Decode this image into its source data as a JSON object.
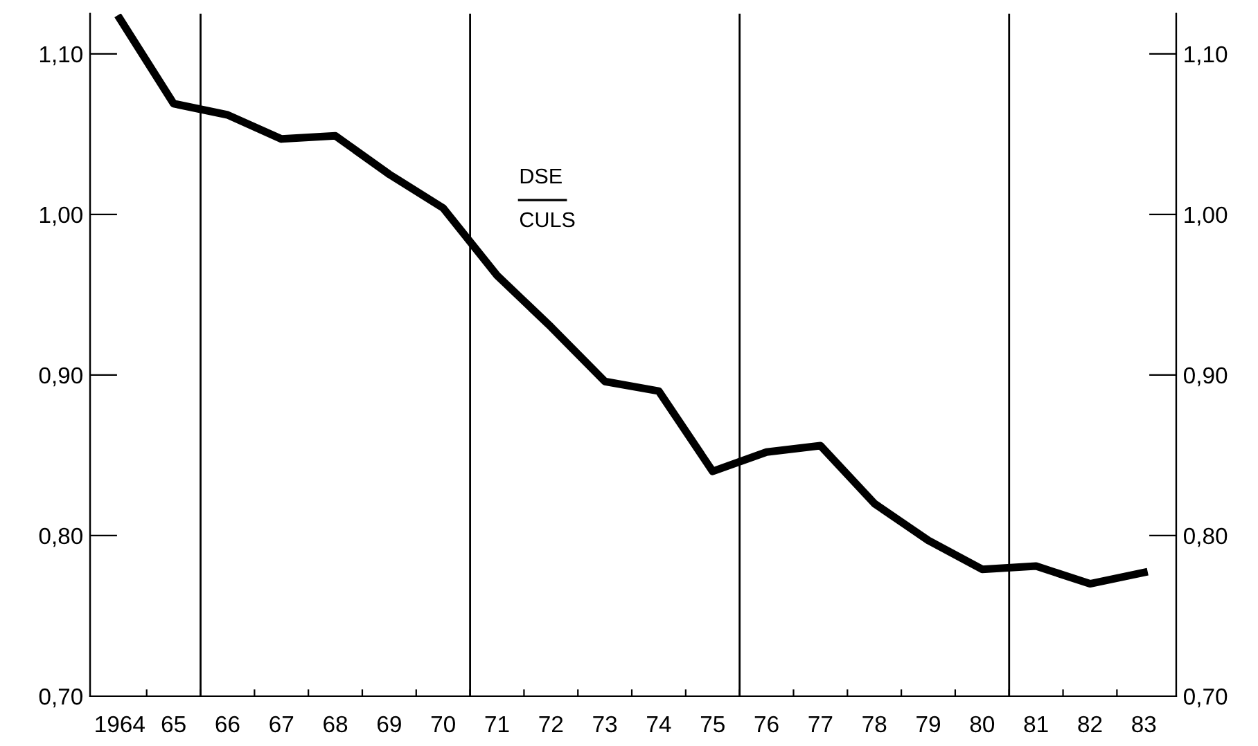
{
  "chart_data": {
    "type": "line",
    "x": [
      1964,
      1965,
      1966,
      1967,
      1968,
      1969,
      1970,
      1971,
      1972,
      1973,
      1974,
      1975,
      1976,
      1977,
      1978,
      1979,
      1980,
      1981,
      1982,
      1983
    ],
    "series": [
      {
        "color": "#000000",
        "values": [
          1.122,
          1.069,
          1.062,
          1.047,
          1.049,
          1.025,
          1.004,
          0.962,
          0.93,
          0.896,
          0.89,
          0.84,
          0.852,
          0.856,
          0.82,
          0.797,
          0.779,
          0.781,
          0.77,
          0.777
        ]
      }
    ],
    "xlim": [
      1963.45,
      1983.6
    ],
    "xticks": [
      {
        "value": 1964,
        "label": "1964"
      },
      {
        "value": 1965,
        "label": "65"
      },
      {
        "value": 1966,
        "label": "66"
      },
      {
        "value": 1967,
        "label": "67"
      },
      {
        "value": 1968,
        "label": "68"
      },
      {
        "value": 1969,
        "label": "69"
      },
      {
        "value": 1970,
        "label": "70"
      },
      {
        "value": 1971,
        "label": "71"
      },
      {
        "value": 1972,
        "label": "72"
      },
      {
        "value": 1973,
        "label": "73"
      },
      {
        "value": 1974,
        "label": "74"
      },
      {
        "value": 1975,
        "label": "75"
      },
      {
        "value": 1976,
        "label": "76"
      },
      {
        "value": 1977,
        "label": "77"
      },
      {
        "value": 1978,
        "label": "78"
      },
      {
        "value": 1979,
        "label": "79"
      },
      {
        "value": 1980,
        "label": "80"
      },
      {
        "value": 1981,
        "label": "81"
      },
      {
        "value": 1982,
        "label": "82"
      },
      {
        "value": 1983,
        "label": "83"
      },
      {
        "value": 1964.5,
        "label": null
      },
      {
        "value": 1965.5,
        "label": null
      },
      {
        "value": 1966.5,
        "label": null
      },
      {
        "value": 1967.5,
        "label": null
      },
      {
        "value": 1968.5,
        "label": null
      },
      {
        "value": 1969.5,
        "label": null
      },
      {
        "value": 1970.5,
        "label": null
      },
      {
        "value": 1971.5,
        "label": null
      },
      {
        "value": 1972.5,
        "label": null
      },
      {
        "value": 1973.5,
        "label": null
      },
      {
        "value": 1974.5,
        "label": null
      },
      {
        "value": 1975.5,
        "label": null
      },
      {
        "value": 1976.5,
        "label": null
      },
      {
        "value": 1977.5,
        "label": null
      },
      {
        "value": 1978.5,
        "label": null
      },
      {
        "value": 1979.5,
        "label": null
      },
      {
        "value": 1980.5,
        "label": null
      },
      {
        "value": 1981.5,
        "label": null
      },
      {
        "value": 1982.5,
        "label": null
      }
    ],
    "ylim": [
      0.7,
      1.125
    ],
    "yticks": [
      {
        "value": 0.7,
        "label": "0,70"
      },
      {
        "value": 0.8,
        "label": "0,80"
      },
      {
        "value": 0.9,
        "label": "0,90"
      },
      {
        "value": 1.0,
        "label": "1,00"
      },
      {
        "value": 1.1,
        "label": "1,10"
      }
    ],
    "y2lim": [
      0.7,
      1.125
    ],
    "y2ticks": [
      {
        "value": 0.7,
        "label": "0,70"
      },
      {
        "value": 0.8,
        "label": "0,80"
      },
      {
        "value": 0.9,
        "label": "0,90"
      },
      {
        "value": 1.0,
        "label": "1,00"
      },
      {
        "value": 1.1,
        "label": "1,10"
      }
    ],
    "ref_lines": [
      {
        "axis": "x",
        "value": 1965.5,
        "color": "#000000"
      },
      {
        "axis": "x",
        "value": 1970.5,
        "color": "#000000"
      },
      {
        "axis": "x",
        "value": 1975.5,
        "color": "#000000"
      },
      {
        "axis": "x",
        "value": 1980.5,
        "color": "#000000"
      }
    ],
    "annotations": [
      "DSE",
      "CULS"
    ],
    "grid": false,
    "legend": false,
    "marker": "none",
    "line_style": "solid"
  }
}
